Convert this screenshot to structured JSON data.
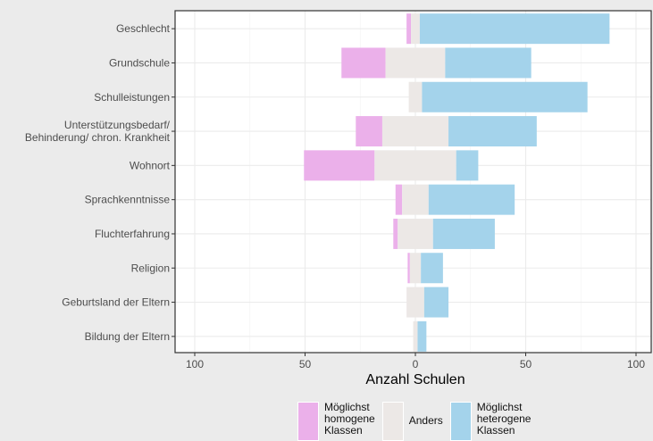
{
  "chart_data": {
    "type": "bar",
    "orientation": "horizontal",
    "stacking": "diverging",
    "categories": [
      "Geschlecht",
      "Grundschule",
      "Schulleistungen",
      "Unterstützungsbedarf/\nBehinderung/ chron. Krankheit",
      "Wohnort",
      "Sprachkenntnisse",
      "Fluchterfahrung",
      "Religion",
      "Geburtsland der Eltern",
      "Bildung der Eltern"
    ],
    "series": [
      {
        "name": "Möglichst\nhomogene\nKlassen",
        "color": "#ebb0ea",
        "values": [
          2,
          20,
          0,
          12,
          32,
          3,
          2,
          1,
          0,
          0
        ],
        "side": "negative"
      },
      {
        "name": "Anders",
        "color": "#ece8e6",
        "values": [
          4,
          27,
          6,
          30,
          37,
          12,
          16,
          5,
          8,
          2
        ],
        "side": "center"
      },
      {
        "name": "Möglichst\nheterogene\nKlassen",
        "color": "#a4d3eb",
        "values": [
          86,
          39,
          75,
          40,
          10,
          39,
          28,
          10,
          11,
          4
        ],
        "side": "positive"
      }
    ],
    "xlabel": "Anzahl Schulen",
    "ylabel": "",
    "xlim": [
      -100,
      100
    ],
    "xticks": [
      -100,
      -50,
      0,
      50,
      100
    ],
    "xtick_labels": [
      "100",
      "50",
      "0",
      "50",
      "100"
    ],
    "grid": true,
    "legend_position": "bottom"
  }
}
